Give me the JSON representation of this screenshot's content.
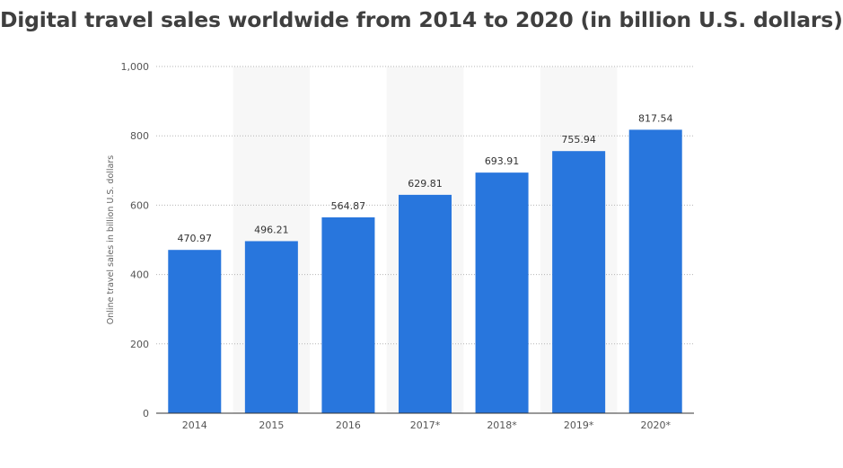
{
  "title": "Digital travel sales worldwide from 2014 to 2020 (in billion U.S. dollars)",
  "chart_data": {
    "type": "bar",
    "title": "Digital travel sales worldwide from 2014 to 2020 (in billion U.S. dollars)",
    "xlabel": "",
    "ylabel": "Online travel sales in billion U.S. dollars",
    "categories": [
      "2014",
      "2015",
      "2016",
      "2017*",
      "2018*",
      "2019*",
      "2020*"
    ],
    "values": [
      470.97,
      496.21,
      564.87,
      629.81,
      693.91,
      755.94,
      817.54
    ],
    "value_labels": [
      "470.97",
      "496.21",
      "564.87",
      "629.81",
      "693.91",
      "755.94",
      "817.54"
    ],
    "ylim": [
      0,
      1000
    ],
    "yticks": [
      0,
      200,
      400,
      600,
      800,
      1000
    ],
    "ytick_labels": [
      "0",
      "200",
      "400",
      "600",
      "800",
      "1,000"
    ],
    "grid": true,
    "bar_color": "#2876dd",
    "shaded_band_color": "#f7f7f7"
  }
}
